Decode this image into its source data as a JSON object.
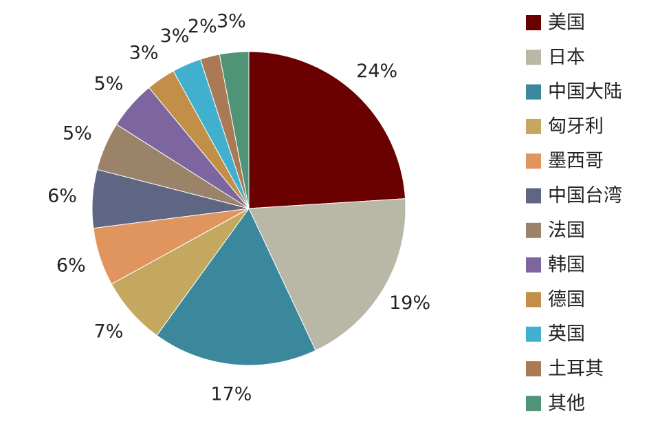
{
  "chart_data": {
    "type": "pie",
    "categories": [
      "美国",
      "日本",
      "中国大陆",
      "匈牙利",
      "墨西哥",
      "中国台湾",
      "法国",
      "韩国",
      "德国",
      "英国",
      "土耳其",
      "其他"
    ],
    "values": [
      24,
      19,
      17,
      7,
      6,
      6,
      5,
      5,
      3,
      3,
      2,
      3
    ],
    "value_labels": [
      "24%",
      "19%",
      "17%",
      "7%",
      "6%",
      "6%",
      "5%",
      "5%",
      "3%",
      "3%",
      "2%",
      "3%"
    ],
    "colors": [
      "#6b0000",
      "#b9b8a6",
      "#3b889c",
      "#c4a860",
      "#e0955f",
      "#5f6683",
      "#9b8369",
      "#7d65a0",
      "#c18f48",
      "#41b0cf",
      "#a97a55",
      "#4f9477"
    ]
  }
}
